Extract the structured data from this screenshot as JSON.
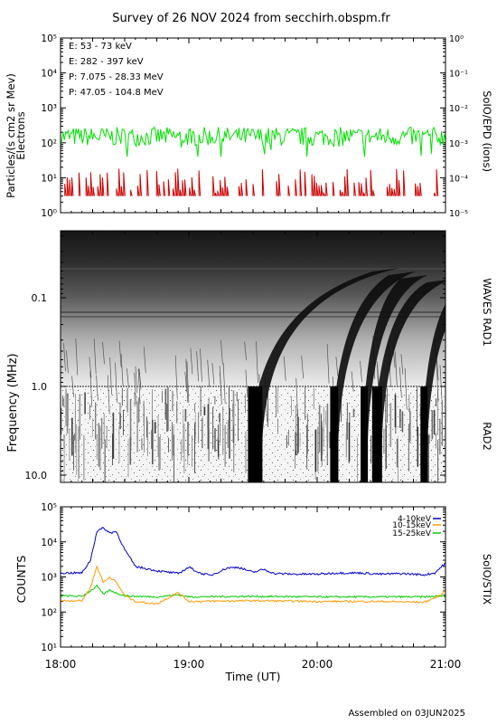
{
  "title": "Survey of 26 NOV 2024 from secchirh.obspm.fr",
  "footer": "Assembled on 03JUN2025",
  "chart_data": [
    {
      "type": "line",
      "panel": "SoIO/EPD",
      "ylabel_left": "Particles/(s cm2 sr Mev)",
      "ylabel_left2": "Electrons",
      "ylabel_right": "SoIO/EPD (ions)",
      "y_scale": "log",
      "ylim": [
        1,
        100000
      ],
      "y_ticks": [
        "10⁰",
        "10¹",
        "10²",
        "10³",
        "10⁴",
        "10⁵"
      ],
      "y_right_ticks": [
        "10⁻⁵",
        "10⁻⁴",
        "10⁻³",
        "10⁻²",
        "10⁻¹",
        "10⁰"
      ],
      "xlim": [
        "18:00",
        "21:00"
      ],
      "legend": [
        {
          "text": "E: 53 - 73 keV",
          "color": "#00e000"
        },
        {
          "text": "E: 282 - 397 keV",
          "color": "#cc0000"
        },
        {
          "text": "P: 7.075 - 28.33 MeV",
          "color": "#000000"
        },
        {
          "text": "P: 47.05 - 104.8 MeV",
          "color": "#0000cc"
        }
      ],
      "series": [
        {
          "name": "E: 53 - 73 keV",
          "color": "#00e000",
          "typical": 150,
          "range": [
            40,
            350
          ]
        },
        {
          "name": "E: 282 - 397 keV",
          "color": "#cc0000",
          "typical": 6,
          "range": [
            3,
            18
          ]
        }
      ]
    },
    {
      "type": "heatmap",
      "panel": "WAVES RAD1 / RAD2",
      "ylabel": "Frequency (MHz)",
      "label_rad1": "WAVES RAD1",
      "label_rad2": "RAD2",
      "y_scale": "log",
      "ylim": [
        0.02,
        16
      ],
      "y_ticks": [
        "0.1",
        "1.0",
        "10.0"
      ],
      "features": [
        {
          "type": "type III burst",
          "time": "19:31"
        },
        {
          "type": "type III burst",
          "time": "20:08"
        },
        {
          "type": "type III burst",
          "time": "20:22"
        },
        {
          "type": "type III burst",
          "time": "20:28"
        },
        {
          "type": "type III burst",
          "time": "20:50"
        }
      ]
    },
    {
      "type": "line",
      "panel": "SoIO/STIX",
      "ylabel": "COUNTS",
      "ylabel_right": "SoIO/STIX",
      "xlabel": "Time (UT)",
      "y_scale": "log",
      "ylim": [
        10,
        100000
      ],
      "y_ticks": [
        "10¹",
        "10²",
        "10³",
        "10⁴",
        "10⁵"
      ],
      "x_ticks": [
        "18:00",
        "19:00",
        "20:00",
        "21:00"
      ],
      "legend": [
        {
          "text": "4-10keV",
          "color": "#0000cc"
        },
        {
          "text": "10-15keV",
          "color": "#ff9900"
        },
        {
          "text": "15-25keV",
          "color": "#00cc00"
        }
      ],
      "series": [
        {
          "name": "4-10keV",
          "color": "#0000cc",
          "x": [
            "18:00",
            "18:10",
            "18:14",
            "18:17",
            "18:20",
            "18:23",
            "18:26",
            "18:30",
            "18:35",
            "18:45",
            "18:55",
            "19:00",
            "19:05",
            "19:10",
            "19:18",
            "19:23",
            "19:30",
            "19:35",
            "19:40",
            "19:50",
            "20:00",
            "20:10",
            "20:20",
            "20:30",
            "20:40",
            "20:50",
            "20:55",
            "21:00"
          ],
          "y": [
            1300,
            1300,
            3000,
            20000,
            25000,
            18000,
            20000,
            6000,
            2000,
            1500,
            1250,
            1900,
            1300,
            1100,
            1800,
            1900,
            1350,
            1650,
            1250,
            1200,
            1200,
            1300,
            1300,
            1200,
            1250,
            1150,
            1300,
            2500
          ]
        },
        {
          "name": "10-15keV",
          "color": "#ff9900",
          "x": [
            "18:00",
            "18:10",
            "18:14",
            "18:17",
            "18:20",
            "18:23",
            "18:26",
            "18:30",
            "18:35",
            "18:45",
            "18:55",
            "19:00",
            "19:30",
            "20:00",
            "20:30",
            "20:50",
            "20:58",
            "21:00"
          ],
          "y": [
            210,
            210,
            500,
            2000,
            700,
            1000,
            700,
            300,
            200,
            170,
            360,
            200,
            210,
            200,
            200,
            190,
            300,
            450
          ]
        },
        {
          "name": "15-25keV",
          "color": "#00cc00",
          "x": [
            "18:00",
            "18:10",
            "18:14",
            "18:17",
            "18:20",
            "18:23",
            "18:26",
            "18:30",
            "18:35",
            "18:45",
            "18:55",
            "19:00",
            "19:30",
            "20:00",
            "20:30",
            "20:50",
            "21:00"
          ],
          "y": [
            290,
            280,
            400,
            550,
            320,
            420,
            350,
            290,
            280,
            270,
            310,
            270,
            280,
            270,
            270,
            270,
            290
          ]
        }
      ]
    }
  ]
}
